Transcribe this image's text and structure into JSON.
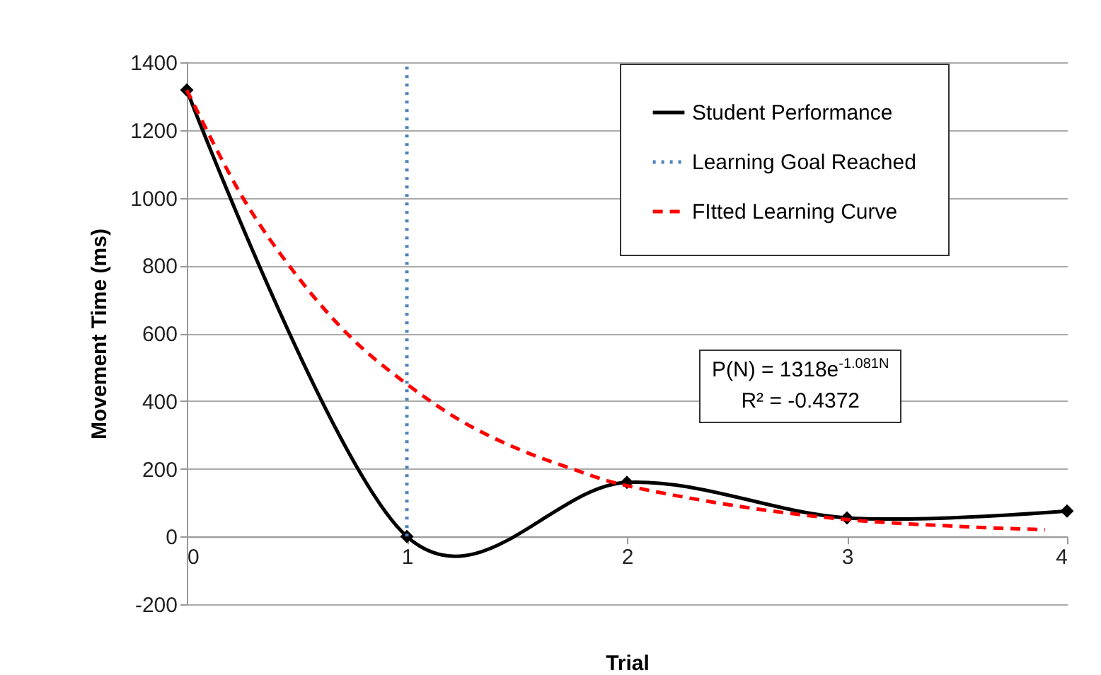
{
  "chart_data": {
    "type": "line",
    "xlabel": "Trial",
    "ylabel": "Movement Time (ms)",
    "series": [
      {
        "name": "Student Performance",
        "color": "#000000",
        "x": [
          0,
          1,
          2,
          3,
          4
        ],
        "values": [
          1318,
          0,
          160,
          55,
          75
        ],
        "marker": "diamond",
        "line_style": "solid"
      },
      {
        "name": "Learning Goal Reached",
        "color": "#4f81bd",
        "x": [
          1,
          1
        ],
        "values": [
          0,
          1400
        ],
        "marker": "none",
        "line_style": "dotted"
      },
      {
        "name": "FItted Learning Curve",
        "color": "#ff0000",
        "x": [
          0,
          0.25,
          0.5,
          0.75,
          1,
          1.25,
          1.5,
          1.75,
          2,
          2.5,
          3,
          3.5,
          3.9
        ],
        "values": [
          1318,
          1005,
          770,
          585,
          450,
          340,
          260,
          200,
          150,
          90,
          50,
          30,
          20
        ],
        "marker": "none",
        "line_style": "dashed"
      }
    ],
    "xlim": [
      0,
      4
    ],
    "xticks": [
      0,
      1,
      2,
      3,
      4
    ],
    "ylim": [
      -200,
      1400
    ],
    "yticks": [
      -200,
      0,
      200,
      400,
      600,
      800,
      1000,
      1200,
      1400
    ],
    "grid": "y",
    "legend": "top right",
    "annotations": [
      "P(N) = 1318e$^{-1.081N}$",
      "R² = -0.4372"
    ]
  }
}
